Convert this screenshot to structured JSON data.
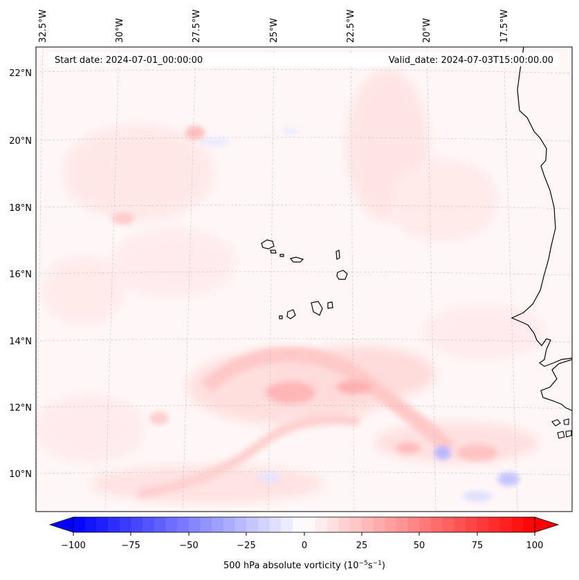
{
  "map": {
    "start_date": "Start date: 2024-07-01_00:00:00",
    "valid_date": "Valid_date: 2024-07-03T15:00:00.00",
    "lon_labels": [
      "32.5°W",
      "30°W",
      "27.5°W",
      "25°W",
      "22.5°W",
      "20°W",
      "17.5°W"
    ],
    "lat_labels": [
      "22°N",
      "20°N",
      "18°N",
      "16°N",
      "14°N",
      "12°N",
      "10°N"
    ]
  },
  "colorbar": {
    "label": "500 hPa absolute vorticity (10",
    "label_exp1": "−5",
    "label_mid": "s",
    "label_exp2": "−1",
    "label_end": ")",
    "vmin": -100,
    "vmax": 100,
    "ticks": [
      "−100",
      "−75",
      "−50",
      "−25",
      "0",
      "25",
      "50",
      "75",
      "100"
    ],
    "low_color": "#0000ff",
    "mid_color": "#ffffff",
    "high_color": "#ff0000"
  }
}
